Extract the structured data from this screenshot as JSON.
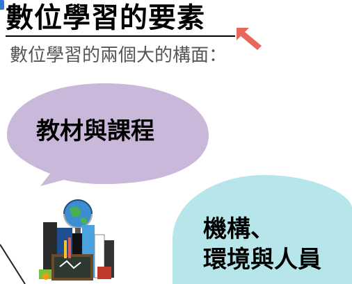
{
  "slide": {
    "title": "數位學習的要素",
    "subtitle": "數位學習的兩個大的構面：",
    "bubble_left": {
      "label": "教材與課程"
    },
    "bubble_right": {
      "line1": "機構、",
      "line2": "環境與人員"
    }
  },
  "colors": {
    "title": "#000000",
    "subtitle": "#555555",
    "bubble_left_fill": "#c9b8da",
    "bubble_right_fill": "#b6e6ea",
    "arrow": "#e8665a",
    "corner_mark": "#2e7bd6"
  },
  "icons": {
    "pointer": "pointer-arrow-icon",
    "illustration": "books-globe-illustration"
  }
}
